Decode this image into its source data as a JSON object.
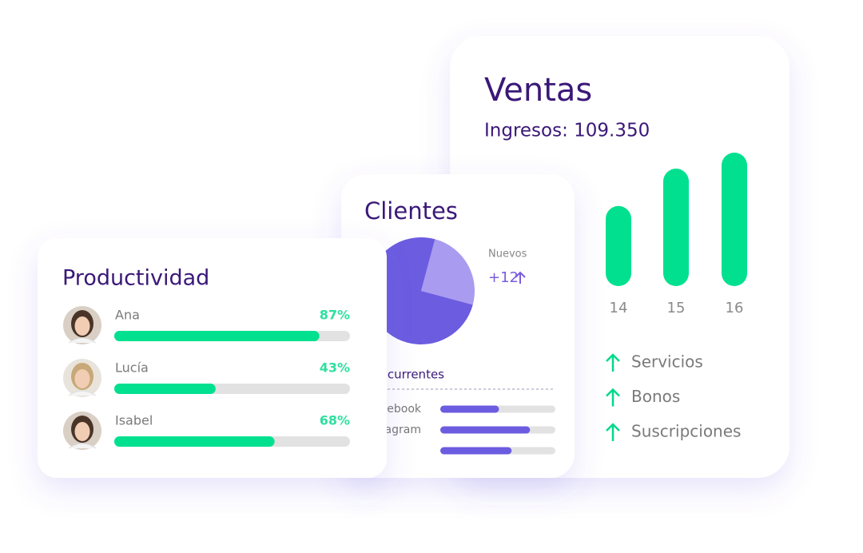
{
  "ventas": {
    "title": "Ventas",
    "subtitle": "Ingresos: 109.350",
    "bars": {
      "categories": [
        "14",
        "15",
        "16"
      ],
      "values": [
        60,
        88,
        100
      ],
      "color": "#00e08f"
    },
    "items": [
      "Servicios",
      "Bonos",
      "Suscripciones"
    ]
  },
  "clientes": {
    "title": "Clientes",
    "pie": {
      "values": [
        25,
        75
      ],
      "colors": [
        "#a99bef",
        "#6b5ce0"
      ]
    },
    "nuevos_label": "Nuevos",
    "nuevos_value": "+12",
    "recurrentes": "Recurrentes",
    "sources": [
      {
        "label": "Facebook",
        "value": 51
      },
      {
        "label": "Instagram",
        "value": 78
      },
      {
        "label": null,
        "value": 62
      }
    ]
  },
  "productividad": {
    "title": "Productividad",
    "people": [
      {
        "name": "Ana",
        "value": 87,
        "value_label": "87%"
      },
      {
        "name": "Lucía",
        "value": 43,
        "value_label": "43%"
      },
      {
        "name": "Isabel",
        "value": 68,
        "value_label": "68%"
      }
    ]
  }
}
